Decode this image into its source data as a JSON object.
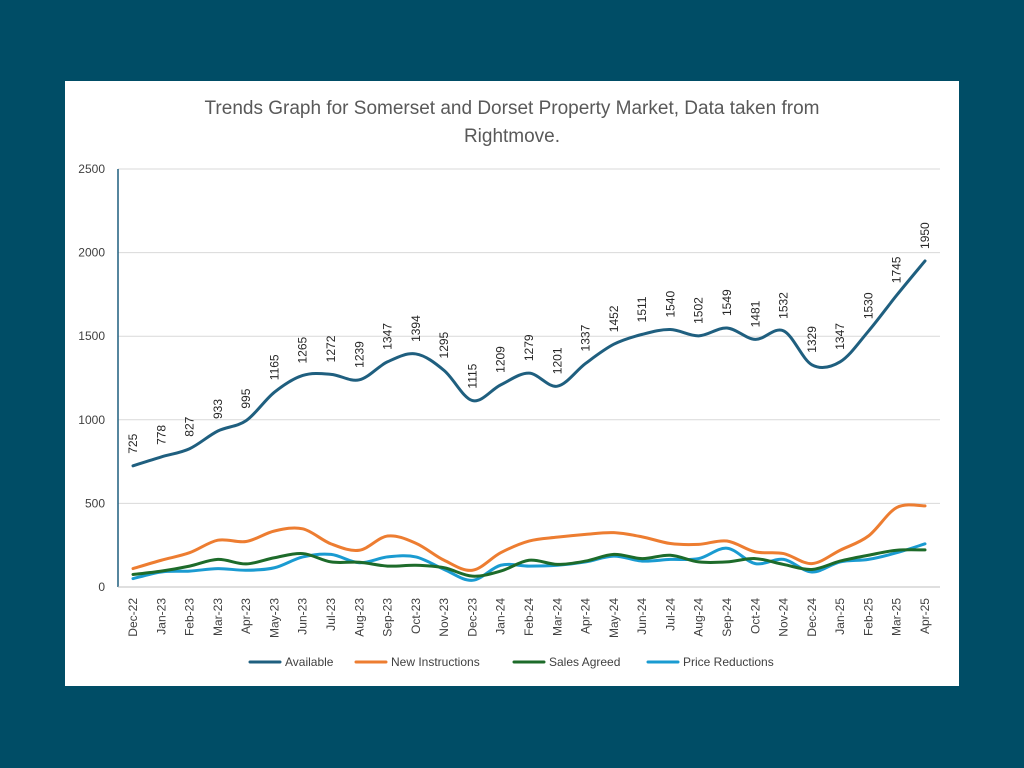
{
  "chart_data": {
    "type": "line",
    "title_lines": [
      "Trends Graph for Somerset and Dorset Property Market, Data taken from",
      "Rightmove."
    ],
    "xlabel": "",
    "ylabel": "",
    "ylim": [
      0,
      2500
    ],
    "y_ticks": [
      0,
      500,
      1000,
      1500,
      2000,
      2500
    ],
    "grid": true,
    "legend_position": "bottom",
    "categories": [
      "Dec-22",
      "Jan-23",
      "Feb-23",
      "Mar-23",
      "Apr-23",
      "May-23",
      "Jun-23",
      "Jul-23",
      "Aug-23",
      "Sep-23",
      "Oct-23",
      "Nov-23",
      "Dec-23",
      "Jan-24",
      "Feb-24",
      "Mar-24",
      "Apr-24",
      "May-24",
      "Jun-24",
      "Jul-24",
      "Aug-24",
      "Sep-24",
      "Oct-24",
      "Nov-24",
      "Dec-24",
      "Jan-25",
      "Feb-25",
      "Mar-25",
      "Apr-25"
    ],
    "series": [
      {
        "name": "Available",
        "color": "#1f5f7f",
        "show_labels": true,
        "values": [
          725,
          778,
          827,
          933,
          995,
          1165,
          1265,
          1272,
          1239,
          1347,
          1394,
          1295,
          1115,
          1209,
          1279,
          1201,
          1337,
          1452,
          1511,
          1540,
          1502,
          1549,
          1481,
          1532,
          1329,
          1347,
          1530,
          1745,
          1950
        ]
      },
      {
        "name": "New Instructions",
        "color": "#ed7d31",
        "show_labels": false,
        "values": [
          110,
          160,
          205,
          280,
          272,
          335,
          348,
          258,
          220,
          305,
          262,
          160,
          100,
          205,
          275,
          298,
          315,
          325,
          300,
          260,
          255,
          275,
          210,
          200,
          140,
          220,
          305,
          475,
          485
        ]
      },
      {
        "name": "Sales Agreed",
        "color": "#1d6b2a",
        "show_labels": false,
        "values": [
          75,
          95,
          125,
          165,
          138,
          175,
          200,
          150,
          148,
          125,
          130,
          115,
          65,
          95,
          160,
          135,
          155,
          195,
          170,
          190,
          150,
          150,
          170,
          135,
          105,
          155,
          190,
          220,
          222
        ]
      },
      {
        "name": "Price Reductions",
        "color": "#1a9bd1",
        "show_labels": false,
        "values": [
          50,
          90,
          95,
          110,
          100,
          115,
          180,
          195,
          145,
          180,
          180,
          105,
          40,
          130,
          125,
          130,
          150,
          185,
          155,
          165,
          170,
          232,
          140,
          165,
          90,
          150,
          165,
          205,
          258
        ]
      }
    ]
  }
}
